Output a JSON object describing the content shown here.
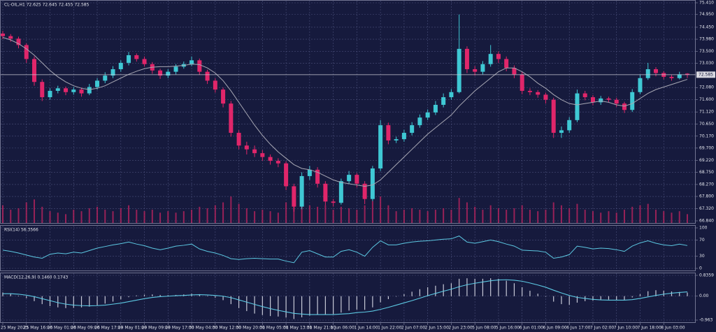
{
  "chart_data": [
    {
      "type": "candlestick",
      "title": "CL-OIL,H1  72.625 72.645 72.455 72.585",
      "up_color": "#3fc8d4",
      "down_color": "#e0266a",
      "grid": true,
      "categories": [
        "25 May 2023",
        null,
        null,
        "25 May 16:00",
        null,
        null,
        "26 May 01:00",
        null,
        null,
        "26 May 09:00",
        null,
        null,
        "26 May 17:00",
        null,
        null,
        "29 May 01:00",
        null,
        null,
        "29 May 09:00",
        null,
        null,
        "29 May 17:00",
        null,
        null,
        "30 May 04:00",
        null,
        null,
        "30 May 12:00",
        null,
        null,
        "30 May 20:00",
        null,
        null,
        "31 May 05:00",
        null,
        null,
        "31 May 13:00",
        null,
        null,
        "31 May 21:00",
        null,
        null,
        "1 Jun 06:00",
        null,
        null,
        "1 Jun 14:00",
        null,
        null,
        "1 Jun 22:00",
        null,
        null,
        "2 Jun 07:00",
        null,
        null,
        "2 Jun 15:00",
        null,
        null,
        "2 Jun 23:00",
        null,
        null,
        "5 Jun 08:00",
        null,
        null,
        "5 Jun 16:00",
        null,
        null,
        "6 Jun 01:00",
        null,
        null,
        "6 Jun 09:00",
        null,
        null,
        "6 Jun 17:00",
        null,
        null,
        "7 Jun 02:00",
        null,
        null,
        "7 Jun 10:00",
        null,
        null,
        "7 Jun 18:00",
        null,
        null,
        "8 Jun 03:00",
        null,
        null,
        null
      ],
      "open": [
        74.2,
        74.1,
        74.0,
        73.75,
        73.2,
        72.3,
        71.7,
        71.95,
        72.05,
        71.9,
        72.0,
        71.85,
        72.1,
        72.35,
        72.55,
        72.8,
        73.05,
        73.35,
        73.2,
        73.0,
        72.75,
        72.55,
        72.7,
        72.9,
        73.0,
        73.15,
        72.7,
        72.35,
        72.0,
        71.45,
        70.3,
        69.8,
        69.65,
        69.5,
        69.35,
        69.2,
        69.1,
        68.2,
        67.4,
        68.6,
        68.85,
        68.3,
        67.6,
        67.55,
        68.4,
        68.65,
        68.3,
        67.7,
        68.9,
        70.6,
        70.0,
        70.05,
        70.3,
        70.6,
        70.9,
        71.1,
        71.4,
        71.7,
        71.9,
        73.6,
        72.8,
        72.7,
        73.0,
        73.4,
        73.2,
        72.85,
        72.6,
        71.95,
        71.9,
        71.8,
        71.6,
        70.3,
        70.4,
        70.8,
        71.85,
        71.7,
        71.5,
        71.65,
        71.6,
        71.45,
        71.2,
        71.9,
        72.45,
        72.8,
        72.65,
        72.5,
        72.45,
        72.625
      ],
      "high": [
        74.3,
        74.18,
        74.08,
        73.82,
        73.3,
        72.4,
        72.05,
        72.15,
        72.12,
        72.1,
        72.08,
        72.22,
        72.45,
        72.68,
        72.92,
        73.15,
        73.48,
        73.42,
        73.3,
        73.08,
        72.82,
        72.8,
        73.0,
        73.1,
        73.3,
        73.22,
        72.78,
        72.45,
        72.08,
        71.55,
        70.4,
        69.95,
        69.8,
        69.62,
        69.45,
        69.3,
        69.18,
        68.3,
        68.75,
        69.0,
        68.95,
        68.4,
        67.7,
        68.5,
        68.8,
        68.72,
        68.4,
        69.0,
        70.8,
        70.7,
        70.15,
        70.42,
        70.72,
        71.02,
        71.22,
        71.55,
        71.85,
        72.02,
        74.95,
        73.7,
        72.92,
        73.12,
        73.75,
        73.5,
        73.3,
        72.95,
        72.7,
        72.05,
        71.98,
        71.88,
        71.68,
        70.55,
        70.92,
        72.0,
        71.95,
        71.78,
        71.75,
        71.72,
        71.68,
        71.52,
        72.02,
        72.58,
        73.05,
        72.88,
        72.72,
        72.58,
        72.7,
        72.645
      ],
      "low": [
        73.98,
        73.88,
        73.62,
        73.05,
        72.15,
        71.55,
        71.6,
        71.85,
        71.78,
        71.8,
        71.72,
        71.78,
        72.0,
        72.25,
        72.45,
        72.7,
        72.95,
        73.1,
        72.9,
        72.62,
        72.42,
        72.45,
        72.6,
        72.82,
        72.92,
        72.58,
        72.22,
        71.88,
        71.3,
        70.15,
        69.65,
        69.45,
        69.35,
        69.2,
        69.05,
        68.95,
        68.05,
        67.2,
        67.3,
        68.45,
        68.15,
        67.45,
        67.4,
        67.48,
        68.3,
        68.15,
        67.5,
        67.62,
        68.8,
        69.85,
        69.9,
        69.95,
        70.2,
        70.5,
        70.8,
        71.0,
        71.3,
        71.6,
        71.85,
        72.65,
        72.55,
        72.6,
        72.9,
        73.05,
        72.72,
        72.45,
        71.82,
        71.78,
        71.68,
        71.45,
        70.1,
        70.1,
        70.3,
        70.72,
        71.58,
        71.38,
        71.4,
        71.5,
        71.32,
        71.08,
        71.12,
        71.82,
        72.38,
        72.52,
        72.4,
        72.35,
        72.4,
        72.455
      ],
      "close": [
        74.1,
        74.0,
        73.75,
        73.2,
        72.3,
        71.7,
        71.95,
        72.05,
        71.9,
        72.0,
        71.85,
        72.1,
        72.35,
        72.55,
        72.8,
        73.05,
        73.35,
        73.2,
        73.0,
        72.75,
        72.55,
        72.7,
        72.9,
        73.0,
        73.15,
        72.7,
        72.35,
        72.0,
        71.45,
        70.3,
        69.8,
        69.65,
        69.5,
        69.35,
        69.2,
        69.1,
        68.2,
        67.4,
        68.6,
        68.85,
        68.3,
        67.6,
        67.55,
        68.4,
        68.65,
        68.3,
        67.7,
        68.9,
        70.6,
        70.0,
        70.05,
        70.3,
        70.6,
        70.9,
        71.1,
        71.4,
        71.7,
        71.9,
        73.6,
        72.8,
        72.7,
        73.0,
        73.4,
        73.2,
        72.85,
        72.6,
        71.95,
        71.9,
        71.8,
        71.6,
        70.3,
        70.4,
        70.8,
        71.85,
        71.7,
        71.5,
        71.65,
        71.6,
        71.45,
        71.2,
        71.9,
        72.45,
        72.8,
        72.65,
        72.5,
        72.45,
        72.6,
        72.585
      ],
      "ma": {
        "color": "#a8a8b4",
        "values": [
          74.05,
          73.95,
          73.8,
          73.6,
          73.35,
          73.05,
          72.75,
          72.5,
          72.3,
          72.15,
          72.05,
          72.0,
          72.05,
          72.15,
          72.3,
          72.45,
          72.6,
          72.72,
          72.82,
          72.88,
          72.9,
          72.9,
          72.92,
          72.95,
          73.0,
          72.98,
          72.85,
          72.65,
          72.35,
          71.95,
          71.5,
          71.05,
          70.6,
          70.2,
          69.85,
          69.55,
          69.3,
          69.05,
          68.9,
          68.85,
          68.75,
          68.6,
          68.45,
          68.35,
          68.3,
          68.25,
          68.2,
          68.25,
          68.45,
          68.75,
          69.05,
          69.35,
          69.65,
          69.95,
          70.25,
          70.5,
          70.75,
          71.0,
          71.35,
          71.65,
          71.95,
          72.2,
          72.45,
          72.7,
          72.85,
          72.85,
          72.7,
          72.5,
          72.25,
          72.05,
          71.8,
          71.6,
          71.45,
          71.4,
          71.45,
          71.5,
          71.55,
          71.5,
          71.4,
          71.35,
          71.45,
          71.65,
          71.85,
          72.0,
          72.1,
          72.2,
          72.3,
          72.4
        ]
      },
      "volume": {
        "color": "#b8235e",
        "values": [
          60,
          45,
          50,
          70,
          80,
          55,
          40,
          35,
          30,
          45,
          40,
          50,
          55,
          45,
          40,
          50,
          60,
          45,
          40,
          45,
          35,
          40,
          35,
          40,
          45,
          55,
          50,
          60,
          70,
          90,
          65,
          50,
          40,
          45,
          40,
          35,
          70,
          95,
          85,
          60,
          55,
          60,
          45,
          55,
          50,
          45,
          60,
          75,
          90,
          60,
          40,
          45,
          50,
          45,
          40,
          45,
          50,
          45,
          85,
          70,
          55,
          45,
          60,
          50,
          45,
          50,
          60,
          45,
          40,
          45,
          70,
          60,
          50,
          65,
          45,
          40,
          35,
          40,
          35,
          45,
          55,
          60,
          65,
          45,
          40,
          35,
          40,
          30
        ]
      },
      "ylim": [
        66.84,
        75.41
      ],
      "yticks": [
        {
          "value": 75.41,
          "label": "75.410"
        },
        {
          "value": 74.95,
          "label": "74.950"
        },
        {
          "value": 74.45,
          "label": "74.450"
        },
        {
          "value": 73.98,
          "label": "73.980"
        },
        {
          "value": 73.5,
          "label": "73.500"
        },
        {
          "value": 73.03,
          "label": "73.030"
        },
        {
          "value": 72.08,
          "label": "72.080"
        },
        {
          "value": 71.6,
          "label": "71.600"
        },
        {
          "value": 71.12,
          "label": "71.120"
        },
        {
          "value": 70.65,
          "label": "70.650"
        },
        {
          "value": 70.17,
          "label": "70.170"
        },
        {
          "value": 69.7,
          "label": "69.700"
        },
        {
          "value": 69.22,
          "label": "69.220"
        },
        {
          "value": 68.75,
          "label": "68.750"
        },
        {
          "value": 68.27,
          "label": "68.270"
        },
        {
          "value": 67.8,
          "label": "67.800"
        },
        {
          "value": 67.32,
          "label": "67.320"
        },
        {
          "value": 66.84,
          "label": "66.840"
        }
      ],
      "last_price": {
        "value": 72.585,
        "label": "72.585"
      }
    },
    {
      "type": "line",
      "title": "RSI(14) 56.3566",
      "color": "#5cc8e2",
      "values": [
        45,
        42,
        38,
        33,
        28,
        25,
        35,
        38,
        36,
        40,
        38,
        44,
        50,
        54,
        58,
        61,
        65,
        60,
        56,
        50,
        46,
        50,
        55,
        57,
        60,
        48,
        42,
        38,
        32,
        24,
        22,
        24,
        25,
        24,
        23,
        23,
        18,
        14,
        40,
        44,
        36,
        28,
        28,
        42,
        46,
        40,
        30,
        52,
        68,
        58,
        58,
        62,
        65,
        67,
        68,
        70,
        72,
        73,
        80,
        65,
        62,
        66,
        70,
        66,
        60,
        55,
        45,
        44,
        43,
        40,
        25,
        28,
        34,
        55,
        52,
        48,
        50,
        49,
        46,
        42,
        55,
        63,
        68,
        62,
        58,
        56,
        60,
        56.3566
      ],
      "ylim": [
        0,
        100
      ],
      "yticks": [
        100,
        70,
        30,
        0
      ]
    },
    {
      "type": "macd",
      "title": "MACD(12,26,9) 0.1460 0.1743",
      "color": "#c8cad8",
      "values": [
        0.15,
        0.1,
        0.02,
        -0.08,
        -0.2,
        -0.32,
        -0.4,
        -0.45,
        -0.48,
        -0.47,
        -0.45,
        -0.42,
        -0.37,
        -0.3,
        -0.22,
        -0.13,
        -0.04,
        0.03,
        0.06,
        0.07,
        0.05,
        0.04,
        0.05,
        0.07,
        0.1,
        0.08,
        0.02,
        -0.06,
        -0.16,
        -0.32,
        -0.48,
        -0.6,
        -0.7,
        -0.76,
        -0.8,
        -0.82,
        -0.86,
        -0.92,
        -0.85,
        -0.78,
        -0.74,
        -0.74,
        -0.72,
        -0.66,
        -0.58,
        -0.54,
        -0.55,
        -0.45,
        -0.25,
        -0.12,
        -0.02,
        0.08,
        0.18,
        0.28,
        0.36,
        0.42,
        0.48,
        0.52,
        0.7,
        0.72,
        0.7,
        0.7,
        0.72,
        0.7,
        0.62,
        0.52,
        0.36,
        0.22,
        0.1,
        -0.02,
        -0.22,
        -0.32,
        -0.35,
        -0.26,
        -0.2,
        -0.18,
        -0.15,
        -0.14,
        -0.15,
        -0.16,
        -0.05,
        0.08,
        0.2,
        0.24,
        0.22,
        0.19,
        0.17,
        0.146
      ],
      "signal": {
        "color": "#5cc8e2",
        "values": [
          0.1,
          0.1,
          0.08,
          0.04,
          -0.02,
          -0.1,
          -0.18,
          -0.26,
          -0.32,
          -0.36,
          -0.38,
          -0.39,
          -0.38,
          -0.36,
          -0.32,
          -0.28,
          -0.22,
          -0.16,
          -0.1,
          -0.05,
          -0.02,
          0.0,
          0.02,
          0.03,
          0.05,
          0.06,
          0.05,
          0.03,
          0.0,
          -0.06,
          -0.15,
          -0.24,
          -0.33,
          -0.42,
          -0.5,
          -0.57,
          -0.63,
          -0.69,
          -0.72,
          -0.74,
          -0.74,
          -0.74,
          -0.74,
          -0.72,
          -0.7,
          -0.66,
          -0.64,
          -0.6,
          -0.53,
          -0.45,
          -0.36,
          -0.27,
          -0.18,
          -0.08,
          0.02,
          0.11,
          0.2,
          0.28,
          0.38,
          0.46,
          0.52,
          0.57,
          0.62,
          0.65,
          0.66,
          0.64,
          0.6,
          0.53,
          0.45,
          0.36,
          0.24,
          0.13,
          0.03,
          -0.05,
          -0.09,
          -0.13,
          -0.15,
          -0.16,
          -0.16,
          -0.16,
          -0.14,
          -0.09,
          -0.03,
          0.03,
          0.08,
          0.12,
          0.15,
          0.1743
        ]
      },
      "ylim": [
        -0.963,
        0.8359
      ],
      "yticks": [
        0.8359,
        {
          "value": 0,
          "label": "0.00"
        },
        -0.963
      ]
    }
  ]
}
